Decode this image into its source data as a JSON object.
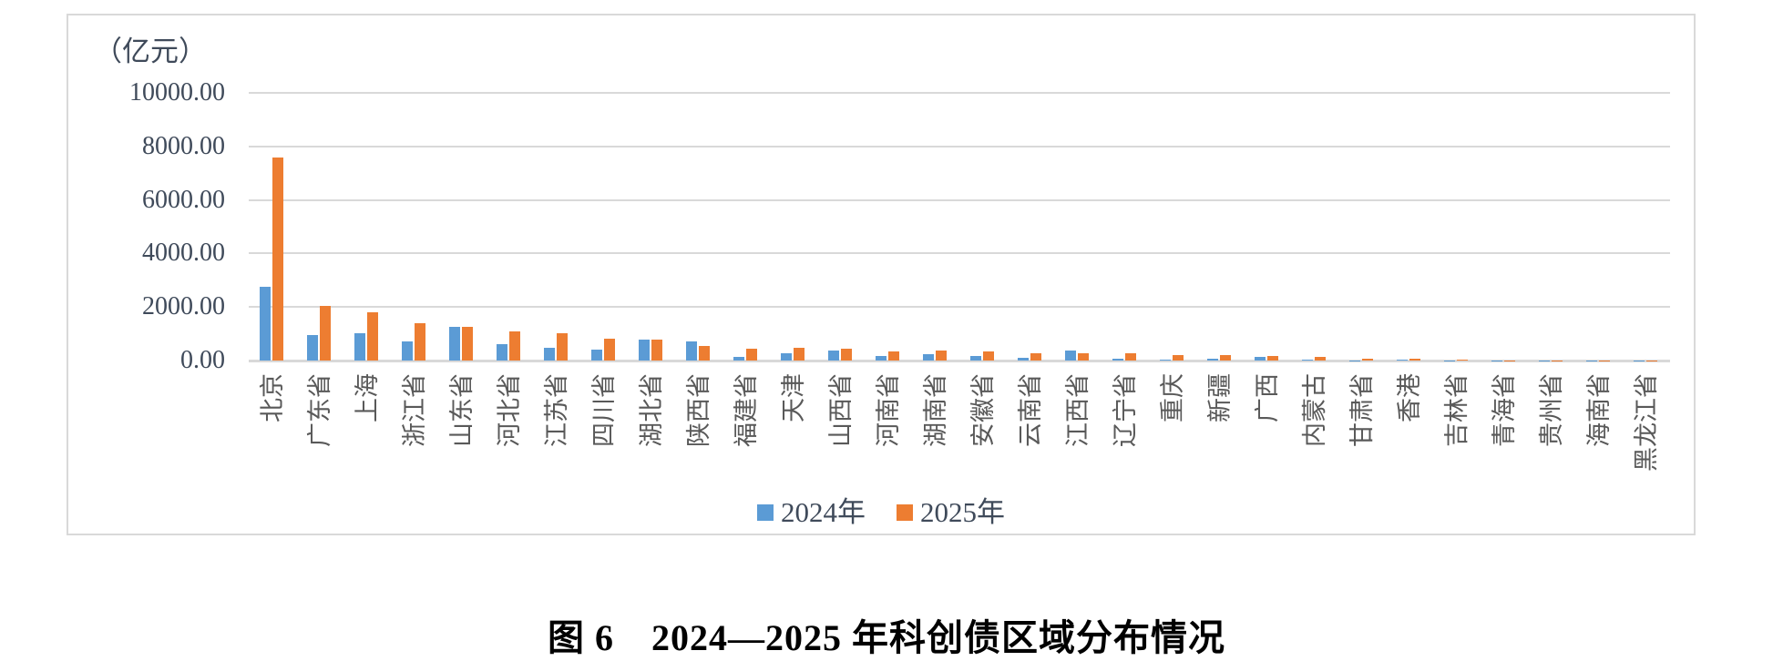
{
  "caption": "图 6　2024—2025 年科创债区域分布情况",
  "chart": {
    "unit_label": "（亿元）",
    "colors": {
      "series_2024": "#5b9bd5",
      "series_2025": "#ed7d31",
      "gridline": "#d9d9d9",
      "frame_border": "#d9d9d9",
      "axis_text": "#3f4a5a",
      "category_text": "#595959",
      "caption_text": "#000000"
    }
  },
  "chart_data": {
    "type": "bar",
    "title": "图 6　2024—2025 年科创债区域分布情况",
    "unit": "亿元",
    "xlabel": "",
    "ylabel": "（亿元）",
    "ylim": [
      0,
      10000
    ],
    "ytick_interval": 2000,
    "ytick_labels": [
      "10000.00",
      "8000.00",
      "6000.00",
      "4000.00",
      "2000.00",
      "0.00"
    ],
    "grid": true,
    "legend_position": "bottom",
    "categories": [
      "北京",
      "广东省",
      "上海",
      "浙江省",
      "山东省",
      "河北省",
      "江苏省",
      "四川省",
      "湖北省",
      "陕西省",
      "福建省",
      "天津",
      "山西省",
      "河南省",
      "湖南省",
      "安徽省",
      "云南省",
      "江西省",
      "辽宁省",
      "重庆",
      "新疆",
      "广西",
      "内蒙古",
      "甘肃省",
      "香港",
      "吉林省",
      "青海省",
      "贵州省",
      "海南省",
      "黑龙江省"
    ],
    "series": [
      {
        "name": "2024年",
        "color": "#5b9bd5",
        "values": [
          2760,
          950,
          1030,
          720,
          1250,
          620,
          490,
          410,
          770,
          710,
          140,
          280,
          360,
          170,
          230,
          180,
          110,
          360,
          80,
          20,
          60,
          150,
          20,
          10,
          50,
          10,
          5,
          5,
          5,
          3
        ]
      },
      {
        "name": "2025年",
        "color": "#ed7d31",
        "values": [
          7600,
          2050,
          1800,
          1380,
          1260,
          1100,
          1010,
          830,
          790,
          550,
          450,
          470,
          430,
          350,
          390,
          330,
          280,
          260,
          270,
          190,
          220,
          170,
          120,
          85,
          55,
          50,
          15,
          10,
          8,
          5
        ]
      }
    ]
  }
}
